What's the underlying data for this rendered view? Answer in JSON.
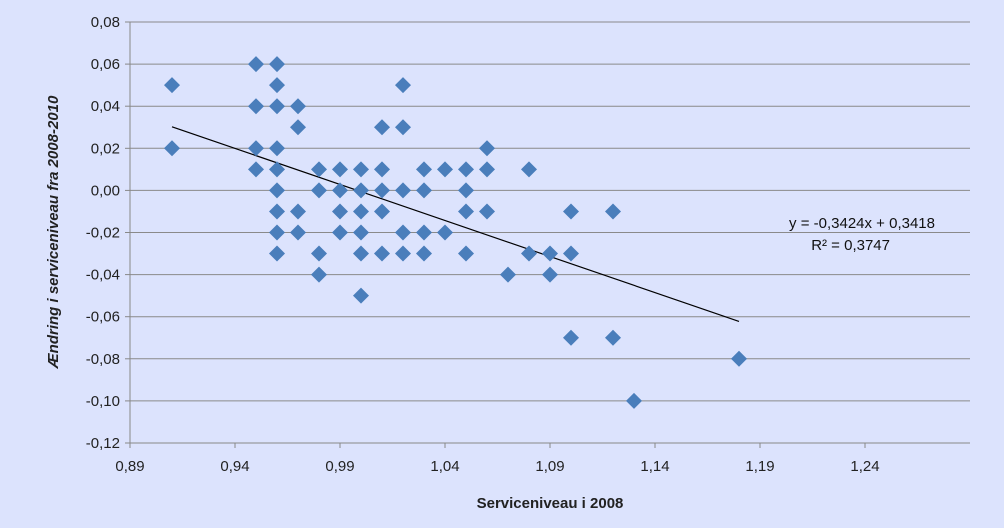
{
  "chart_data": {
    "type": "scatter",
    "xlabel": "Serviceniveau i 2008",
    "ylabel": "Ændring i serviceniveau fra 2008-2010",
    "xlim": [
      0.89,
      1.29
    ],
    "ylim": [
      -0.12,
      0.08
    ],
    "xticks": [
      "0,89",
      "0,94",
      "0,99",
      "1,04",
      "1,09",
      "1,14",
      "1,19",
      "1,24"
    ],
    "xtick_values": [
      0.89,
      0.94,
      0.99,
      1.04,
      1.09,
      1.14,
      1.19,
      1.24
    ],
    "yticks": [
      "0,08",
      "0,06",
      "0,04",
      "0,02",
      "0,00",
      "-0,02",
      "-0,04",
      "-0,06",
      "-0,08",
      "-0,10",
      "-0,12"
    ],
    "ytick_values": [
      0.08,
      0.06,
      0.04,
      0.02,
      0,
      -0.02,
      -0.04,
      -0.06,
      -0.08,
      -0.1,
      -0.12
    ],
    "grid": "horizontal",
    "marker_color": "#4a7ebb",
    "points": [
      [
        0.91,
        0.05
      ],
      [
        0.91,
        0.02
      ],
      [
        0.95,
        0.06
      ],
      [
        0.96,
        0.06
      ],
      [
        0.96,
        0.05
      ],
      [
        0.95,
        0.04
      ],
      [
        0.96,
        0.04
      ],
      [
        0.97,
        0.04
      ],
      [
        0.97,
        0.03
      ],
      [
        1.01,
        0.03
      ],
      [
        1.02,
        0.03
      ],
      [
        1.02,
        0.05
      ],
      [
        0.95,
        0.02
      ],
      [
        0.96,
        0.02
      ],
      [
        1.06,
        0.02
      ],
      [
        0.95,
        0.01
      ],
      [
        0.96,
        0.01
      ],
      [
        0.98,
        0.01
      ],
      [
        0.99,
        0.01
      ],
      [
        1.0,
        0.01
      ],
      [
        1.01,
        0.01
      ],
      [
        1.03,
        0.01
      ],
      [
        1.04,
        0.01
      ],
      [
        1.05,
        0.01
      ],
      [
        1.06,
        0.01
      ],
      [
        1.08,
        0.01
      ],
      [
        0.96,
        0
      ],
      [
        0.98,
        0
      ],
      [
        0.99,
        0
      ],
      [
        1.0,
        0
      ],
      [
        1.01,
        0
      ],
      [
        1.02,
        0
      ],
      [
        1.03,
        0
      ],
      [
        1.05,
        0
      ],
      [
        0.96,
        -0.01
      ],
      [
        0.97,
        -0.01
      ],
      [
        0.99,
        -0.01
      ],
      [
        1.0,
        -0.01
      ],
      [
        1.01,
        -0.01
      ],
      [
        1.05,
        -0.01
      ],
      [
        1.06,
        -0.01
      ],
      [
        1.1,
        -0.01
      ],
      [
        1.12,
        -0.01
      ],
      [
        0.96,
        -0.02
      ],
      [
        0.97,
        -0.02
      ],
      [
        0.99,
        -0.02
      ],
      [
        1.0,
        -0.02
      ],
      [
        1.02,
        -0.02
      ],
      [
        1.03,
        -0.02
      ],
      [
        1.04,
        -0.02
      ],
      [
        0.96,
        -0.03
      ],
      [
        0.98,
        -0.03
      ],
      [
        1.0,
        -0.03
      ],
      [
        1.01,
        -0.03
      ],
      [
        1.02,
        -0.03
      ],
      [
        1.03,
        -0.03
      ],
      [
        1.05,
        -0.03
      ],
      [
        1.08,
        -0.03
      ],
      [
        1.09,
        -0.03
      ],
      [
        1.1,
        -0.03
      ],
      [
        0.98,
        -0.04
      ],
      [
        1.07,
        -0.04
      ],
      [
        1.09,
        -0.04
      ],
      [
        1.0,
        -0.05
      ],
      [
        1.1,
        -0.07
      ],
      [
        1.12,
        -0.07
      ],
      [
        1.18,
        -0.08
      ],
      [
        1.13,
        -0.1
      ]
    ],
    "trendline": {
      "slope": -0.3424,
      "intercept": 0.3418,
      "x_range": [
        0.91,
        1.18
      ],
      "equation": "y = -0,3424x + 0,3418",
      "r2": "R² = 0,3747"
    }
  }
}
